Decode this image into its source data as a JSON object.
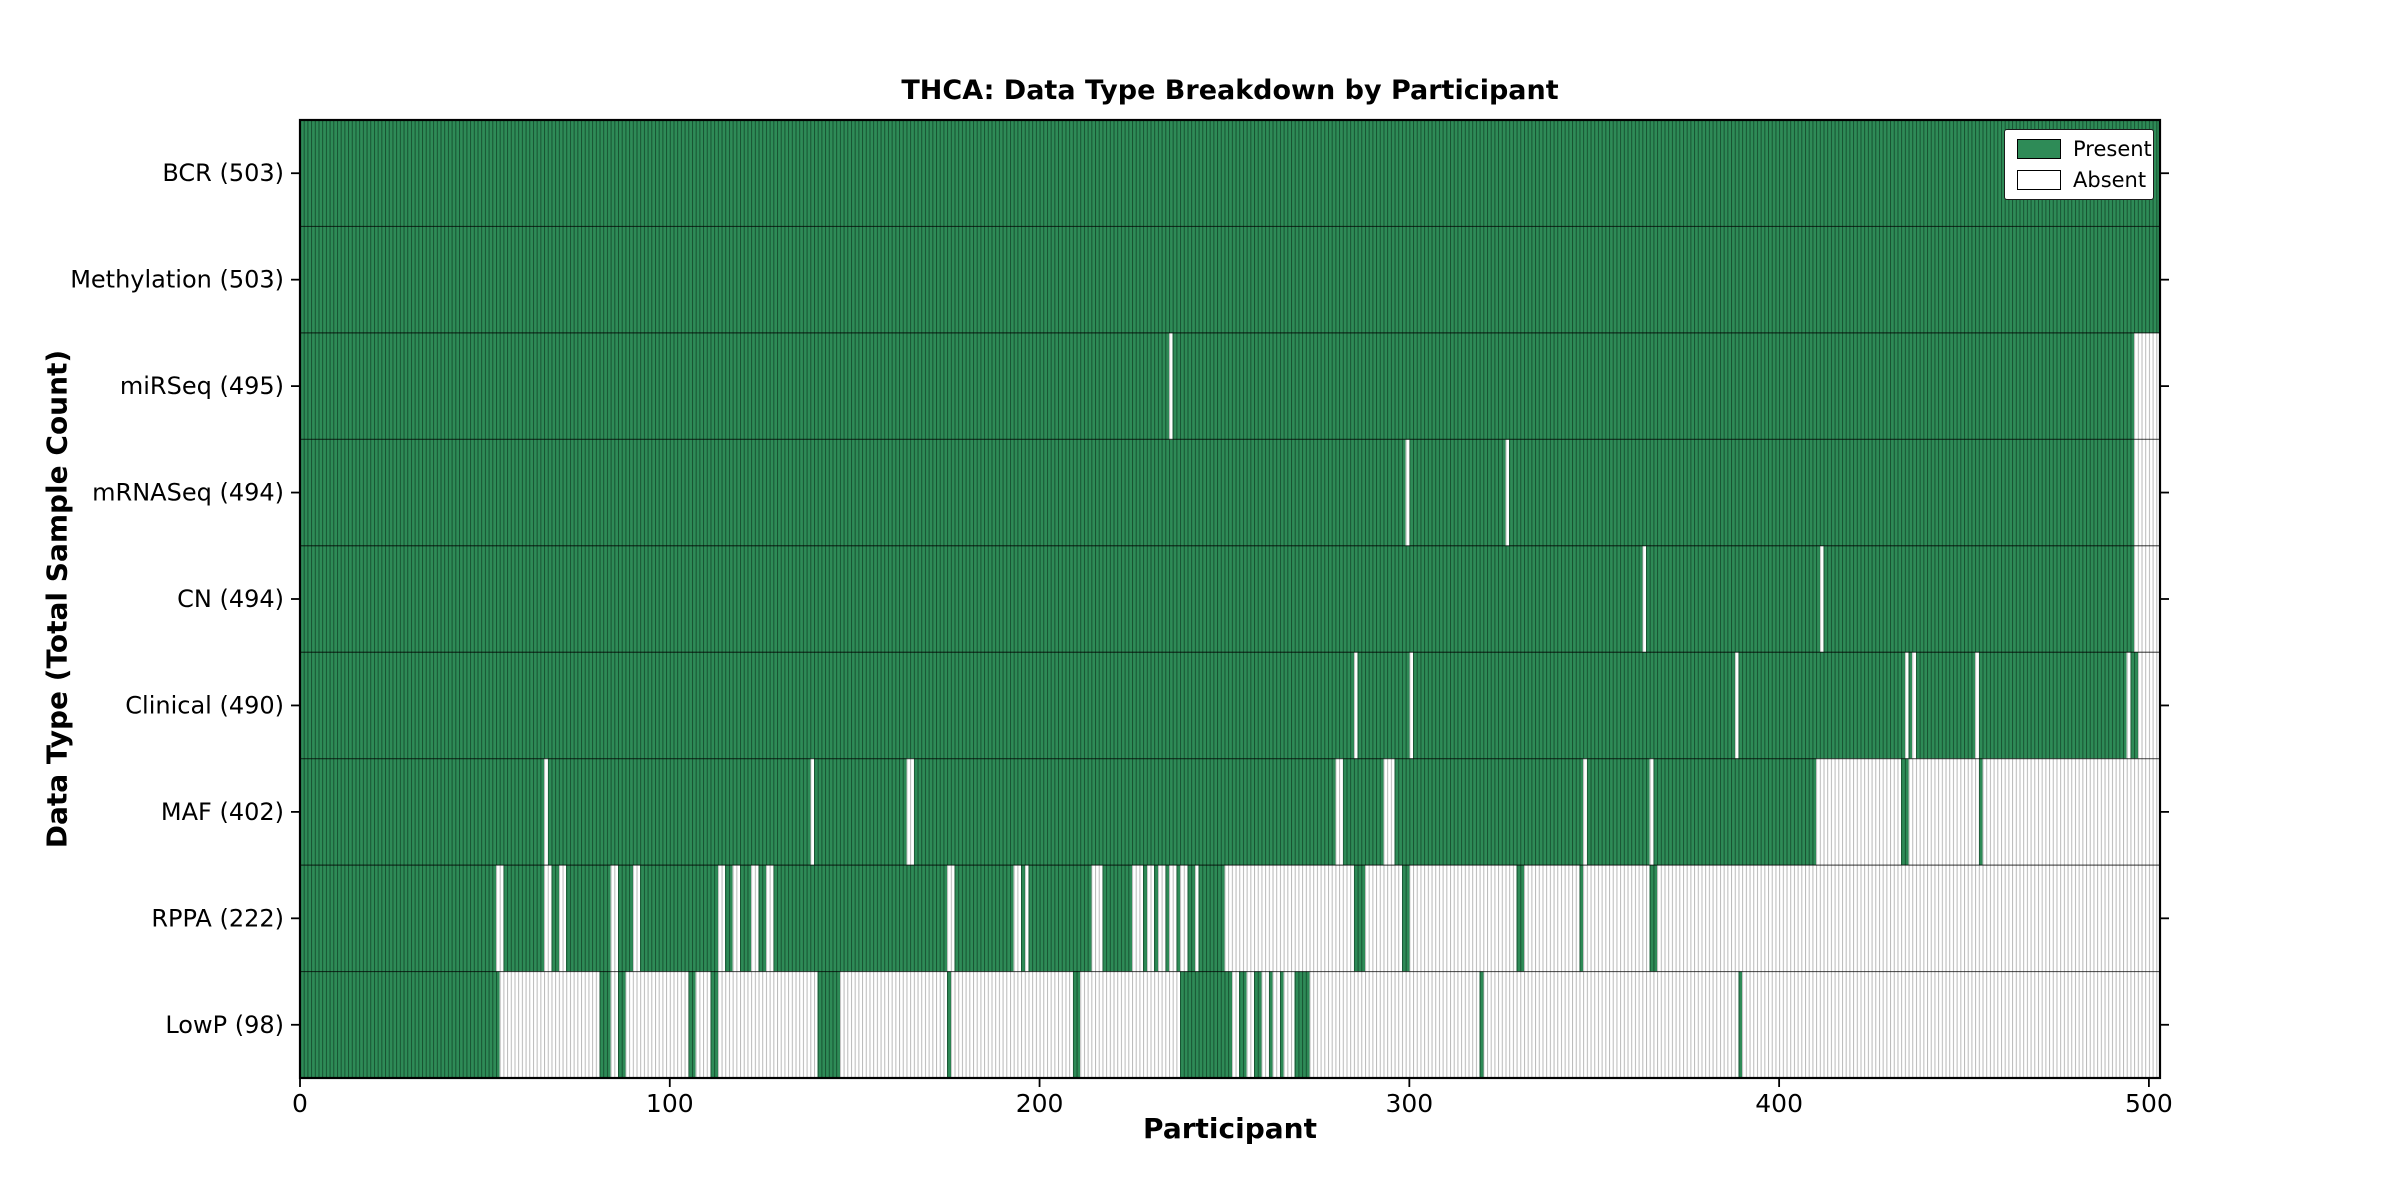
{
  "chart_data": {
    "type": "heatmap",
    "title": "THCA: Data Type Breakdown by Participant",
    "xlabel": "Participant",
    "ylabel": "Data Type (Total Sample Count)",
    "x_ticks": [
      0,
      100,
      200,
      300,
      400,
      500
    ],
    "x_max": 503,
    "grid": false,
    "colors": {
      "present": "#2e8b57",
      "absent": "#ffffff",
      "bar_edge_on_green": "rgba(0,25,12,0.50)",
      "bar_edge_on_white": "#b9b9b9",
      "frame": "#000000"
    },
    "legend": {
      "position": "upper-right",
      "entries": [
        {
          "label": "Present",
          "color": "#2e8b57"
        },
        {
          "label": "Absent",
          "color": "#ffffff"
        }
      ]
    },
    "rows": [
      {
        "label": "BCR (503)",
        "present_count": 503,
        "absent_ranges": []
      },
      {
        "label": "Methylation (503)",
        "present_count": 503,
        "absent_ranges": []
      },
      {
        "label": "miRSeq (495)",
        "present_count": 495,
        "absent_ranges": [
          [
            235,
            236
          ],
          [
            496,
            503
          ]
        ]
      },
      {
        "label": "mRNASeq (494)",
        "present_count": 494,
        "absent_ranges": [
          [
            299,
            300
          ],
          [
            326,
            327
          ],
          [
            496,
            503
          ]
        ]
      },
      {
        "label": "CN (494)",
        "present_count": 494,
        "absent_ranges": [
          [
            363,
            364
          ],
          [
            411,
            412
          ],
          [
            496,
            503
          ]
        ]
      },
      {
        "label": "Clinical (490)",
        "present_count": 490,
        "absent_ranges": [
          [
            285,
            286
          ],
          [
            300,
            301
          ],
          [
            388,
            389
          ],
          [
            434,
            435
          ],
          [
            436,
            437
          ],
          [
            453,
            454
          ],
          [
            494,
            495
          ],
          [
            497,
            503
          ]
        ]
      },
      {
        "label": "MAF (402)",
        "present_count": 402,
        "absent_ranges": [
          [
            66,
            67
          ],
          [
            138,
            139
          ],
          [
            164,
            166
          ],
          [
            280,
            282
          ],
          [
            293,
            296
          ],
          [
            347,
            348
          ],
          [
            365,
            366
          ],
          [
            410,
            433
          ],
          [
            435,
            454
          ],
          [
            455,
            503
          ]
        ]
      },
      {
        "label": "RPPA (222)",
        "present_count": 222,
        "absent_ranges": [
          [
            53,
            55
          ],
          [
            66,
            68
          ],
          [
            70,
            72
          ],
          [
            84,
            86
          ],
          [
            90,
            92
          ],
          [
            113,
            115
          ],
          [
            117,
            119
          ],
          [
            122,
            124
          ],
          [
            126,
            128
          ],
          [
            175,
            177
          ],
          [
            193,
            195
          ],
          [
            196,
            197
          ],
          [
            214,
            217
          ],
          [
            225,
            228
          ],
          [
            229,
            231
          ],
          [
            232,
            234
          ],
          [
            235,
            237
          ],
          [
            238,
            240
          ],
          [
            242,
            243
          ],
          [
            250,
            285
          ],
          [
            288,
            298
          ],
          [
            300,
            329
          ],
          [
            331,
            346
          ],
          [
            347,
            365
          ],
          [
            367,
            503
          ]
        ]
      },
      {
        "label": "LowP (98)",
        "present_count": 98,
        "absent_ranges": [
          [
            54,
            81
          ],
          [
            84,
            86
          ],
          [
            88,
            105
          ],
          [
            107,
            111
          ],
          [
            113,
            140
          ],
          [
            146,
            175
          ],
          [
            176,
            209
          ],
          [
            211,
            238
          ],
          [
            252,
            254
          ],
          [
            256,
            258
          ],
          [
            260,
            262
          ],
          [
            263,
            265
          ],
          [
            266,
            269
          ],
          [
            273,
            319
          ],
          [
            320,
            389
          ],
          [
            390,
            503
          ]
        ]
      }
    ]
  }
}
